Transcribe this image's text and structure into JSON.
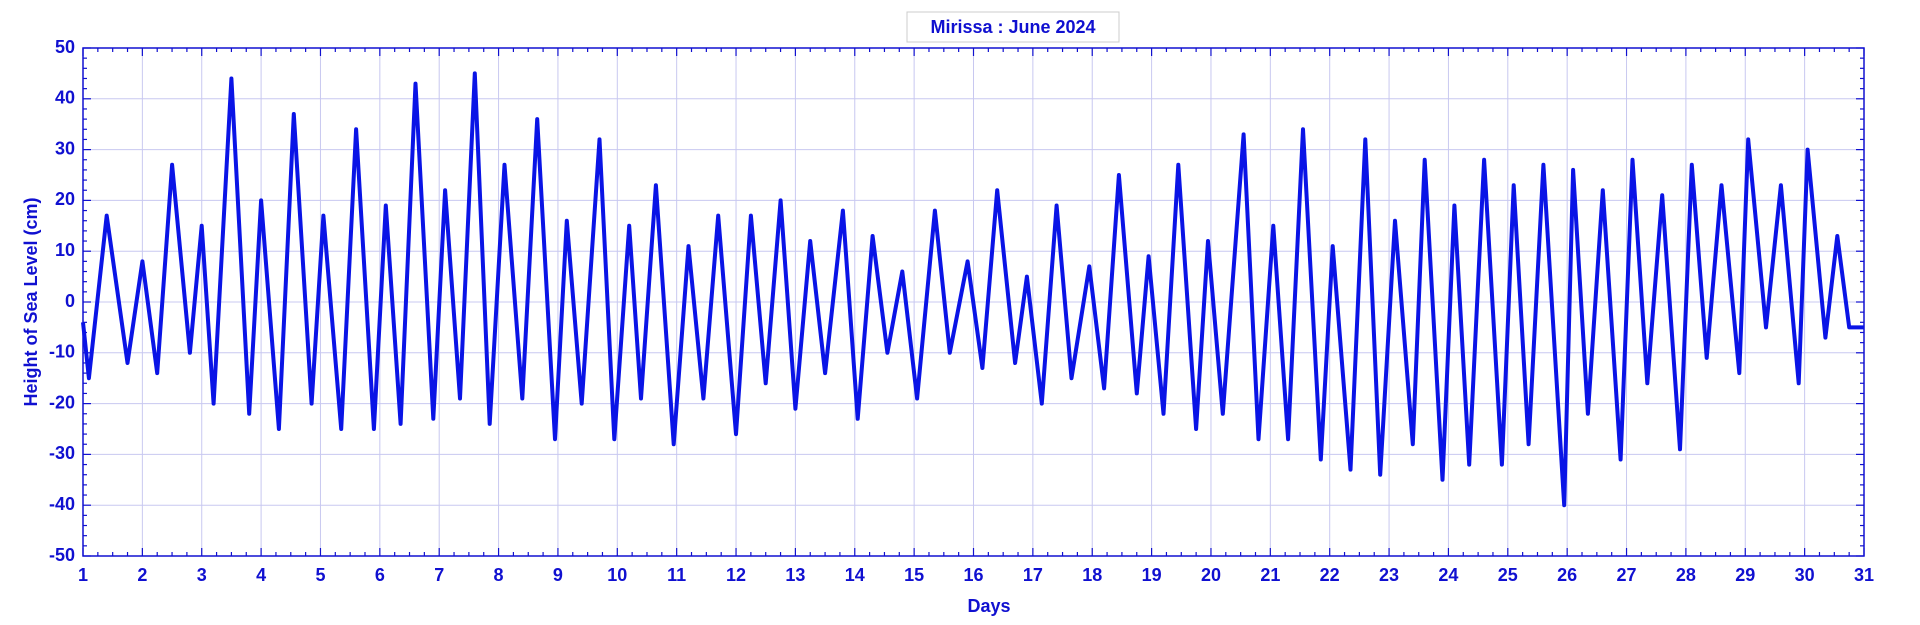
{
  "chart_data": {
    "type": "line",
    "title": "Mirissa : June 2024",
    "xlabel": "Days",
    "ylabel": "Height of Sea Level (cm)",
    "x": [
      1.0,
      1.1,
      1.4,
      1.75,
      2.0,
      2.25,
      2.5,
      2.8,
      3.0,
      3.2,
      3.5,
      3.8,
      4.0,
      4.3,
      4.55,
      4.85,
      5.05,
      5.35,
      5.6,
      5.9,
      6.1,
      6.35,
      6.6,
      6.9,
      7.1,
      7.35,
      7.6,
      7.85,
      8.1,
      8.4,
      8.65,
      8.95,
      9.15,
      9.4,
      9.7,
      9.95,
      10.2,
      10.4,
      10.65,
      10.95,
      11.2,
      11.45,
      11.7,
      12.0,
      12.25,
      12.5,
      12.75,
      13.0,
      13.25,
      13.5,
      13.8,
      14.05,
      14.3,
      14.55,
      14.8,
      15.05,
      15.35,
      15.6,
      15.9,
      16.15,
      16.4,
      16.7,
      16.9,
      17.15,
      17.4,
      17.65,
      17.95,
      18.2,
      18.45,
      18.75,
      18.95,
      19.2,
      19.45,
      19.75,
      19.95,
      20.2,
      20.55,
      20.8,
      21.05,
      21.3,
      21.55,
      21.85,
      22.05,
      22.35,
      22.6,
      22.85,
      23.1,
      23.4,
      23.6,
      23.9,
      24.1,
      24.35,
      24.6,
      24.9,
      25.1,
      25.35,
      25.6,
      25.95,
      26.1,
      26.35,
      26.6,
      26.9,
      27.1,
      27.35,
      27.6,
      27.9,
      28.1,
      28.35,
      28.6,
      28.9,
      29.05,
      29.35,
      29.6,
      29.9,
      30.05,
      30.35,
      30.55,
      30.75,
      31.0
    ],
    "series": [
      {
        "name": "Sea level",
        "color": "#0a14e6",
        "values": [
          -4,
          -15,
          17,
          -12,
          8,
          -14,
          27,
          -10,
          15,
          -20,
          44,
          -22,
          20,
          -25,
          37,
          -20,
          17,
          -25,
          34,
          -25,
          19,
          -24,
          43,
          -23,
          22,
          -19,
          45,
          -24,
          27,
          -19,
          36,
          -27,
          16,
          -20,
          32,
          -27,
          15,
          -19,
          23,
          -28,
          11,
          -19,
          17,
          -26,
          17,
          -16,
          20,
          -21,
          12,
          -14,
          18,
          -23,
          13,
          -10,
          6,
          -19,
          18,
          -10,
          8,
          -13,
          22,
          -12,
          5,
          -20,
          19,
          -15,
          7,
          -17,
          25,
          -18,
          9,
          -22,
          27,
          -25,
          12,
          -22,
          33,
          -27,
          15,
          -27,
          34,
          -31,
          11,
          -33,
          32,
          -34,
          16,
          -28,
          28,
          -35,
          19,
          -32,
          28,
          -32,
          23,
          -28,
          27,
          -40,
          26,
          -22,
          22,
          -31,
          28,
          -16,
          21,
          -29,
          27,
          -11,
          23,
          -14,
          32,
          -5,
          23,
          -16,
          30,
          -7,
          13,
          -5,
          -5
        ]
      }
    ],
    "xlim": [
      1,
      31
    ],
    "xticks": [
      1,
      2,
      3,
      4,
      5,
      6,
      7,
      8,
      9,
      10,
      11,
      12,
      13,
      14,
      15,
      16,
      17,
      18,
      19,
      20,
      21,
      22,
      23,
      24,
      25,
      26,
      27,
      28,
      29,
      30,
      31
    ],
    "ylim": [
      -50,
      50
    ],
    "yticks": [
      -50,
      -40,
      -30,
      -20,
      -10,
      0,
      10,
      20,
      30,
      40,
      50
    ],
    "grid": true
  }
}
